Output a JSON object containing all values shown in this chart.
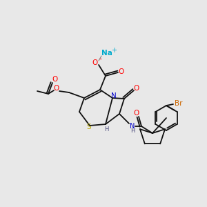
{
  "bg_color": "#e8e8e8",
  "atom_colors": {
    "O": "#ff0000",
    "N": "#0000cc",
    "S": "#bbaa00",
    "Na": "#00aacc",
    "Br": "#cc6600",
    "C": "#000000",
    "H": "#444477"
  },
  "bond_lw": 1.3,
  "fontsize": 7.5
}
